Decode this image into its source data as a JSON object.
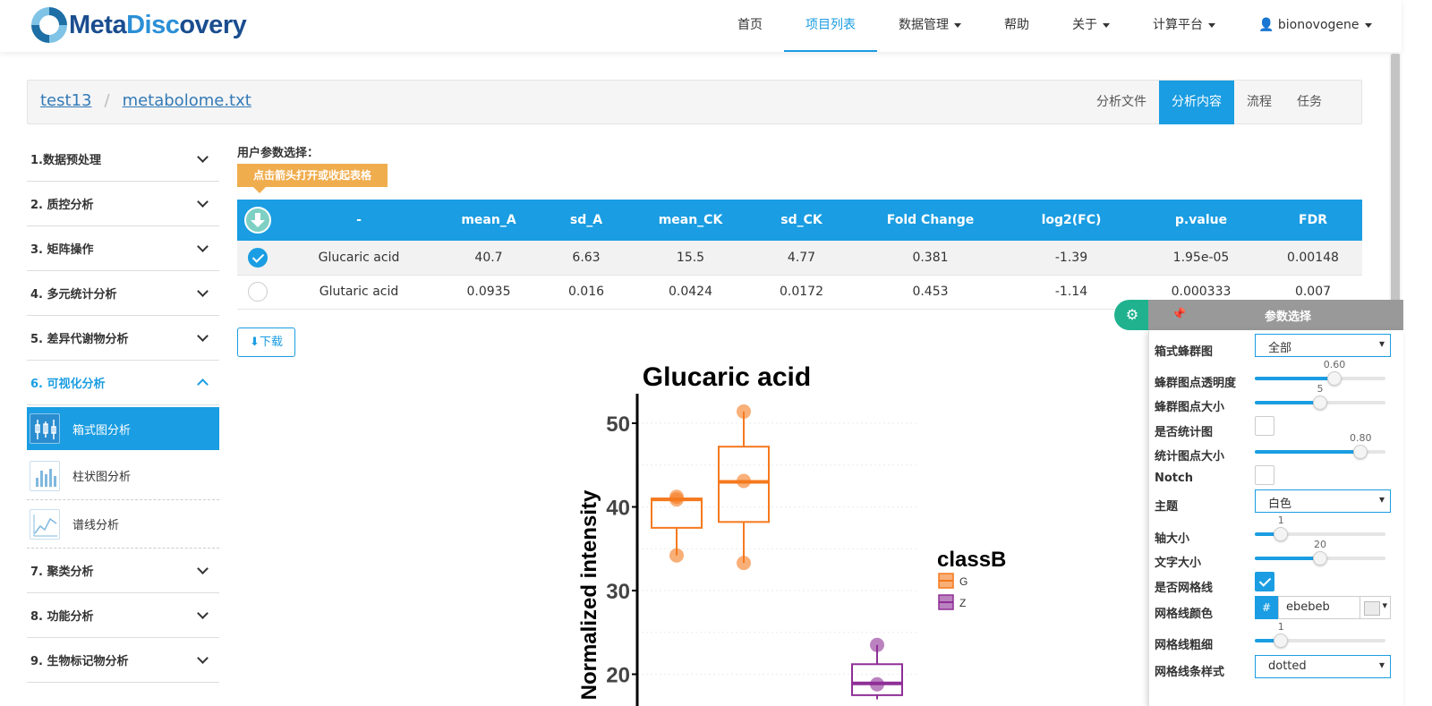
{
  "brand": {
    "part1": "Meta",
    "part2": "Disc",
    "part3": "overy"
  },
  "nav": {
    "items": [
      "首页",
      "项目列表",
      "数据管理",
      "帮助",
      "关于",
      "计算平台"
    ],
    "user": "bionovogene"
  },
  "breadcrumb": {
    "project": "test13",
    "file": "metabolome.txt"
  },
  "right_tabs": [
    "分析文件",
    "分析内容",
    "流程",
    "任务"
  ],
  "sidebar": {
    "sections": [
      "1.数据预处理",
      "2. 质控分析",
      "3. 矩阵操作",
      "4. 多元统计分析",
      "5. 差异代谢物分析",
      "6. 可视化分析",
      "7. 聚类分析",
      "8. 功能分析",
      "9. 生物标记物分析"
    ],
    "sub_items": [
      "箱式图分析",
      "柱状图分析",
      "谱线分析"
    ]
  },
  "main": {
    "param_label": "用户参数选择：",
    "hint": "点击箭头打开或收起表格",
    "download": "下载"
  },
  "table": {
    "headers": [
      "-",
      "mean_A",
      "sd_A",
      "mean_CK",
      "sd_CK",
      "Fold Change",
      "log2(FC)",
      "p.value",
      "FDR"
    ],
    "rows": [
      [
        "Glucaric acid",
        "40.7",
        "6.63",
        "15.5",
        "4.77",
        "0.381",
        "-1.39",
        "1.95e-05",
        "0.00148"
      ],
      [
        "Glutaric acid",
        "0.0935",
        "0.016",
        "0.0424",
        "0.0172",
        "0.453",
        "-1.14",
        "0.000333",
        "0.007"
      ]
    ]
  },
  "chart_data": {
    "type": "box",
    "title": "Glucaric acid",
    "ylabel": "Normalized intensity",
    "ylim": [
      17,
      53
    ],
    "yticks": [
      "50",
      "40",
      "30",
      "20"
    ],
    "legend": {
      "title": "classB",
      "entries": [
        "G",
        "Z"
      ]
    },
    "colors": {
      "G": "#f5791e",
      "Z": "#8e2f96"
    },
    "boxes": [
      {
        "group": "G",
        "q1": 37.5,
        "median": 40.9,
        "q3": 41.0,
        "whisker_low": 34.2,
        "whisker_high": 41.1,
        "points": [
          34.2,
          41.2,
          40.9
        ]
      },
      {
        "group": "G",
        "q1": 38.2,
        "median": 43.0,
        "q3": 47.2,
        "whisker_low": 33.3,
        "whisker_high": 51.4,
        "points": [
          51.4,
          43.1,
          33.3
        ]
      },
      {
        "group": "Z",
        "q1": 17.5,
        "median": 18.9,
        "q3": 21.2,
        "whisker_low": 17.0,
        "whisker_high": 23.5,
        "points": [
          23.5,
          18.8
        ]
      }
    ]
  },
  "params": {
    "title": "参数选择",
    "labels": [
      "箱式蜂群图",
      "蜂群图点透明度",
      "蜂群图点大小",
      "是否统计图",
      "统计图点大小",
      "Notch",
      "主题",
      "轴大小",
      "文字大小",
      "是否网格线",
      "网格线颜色",
      "网格线粗细",
      "网格线条样式"
    ],
    "boxplot_mode": "全部",
    "point_alpha": "0.60",
    "point_size": "5",
    "stat_point_size": "0.80",
    "theme": "白色",
    "axis_size": "1",
    "text_size": "20",
    "grid_color": "ebebeb",
    "grid_width": "1",
    "grid_style": "dotted",
    "slider_levels": {
      "point_alpha": 0.61,
      "point_size": 0.5,
      "stat_point_size": 0.81,
      "axis_size": 0.2,
      "text_size": 0.5,
      "grid_width": 0.2
    }
  }
}
